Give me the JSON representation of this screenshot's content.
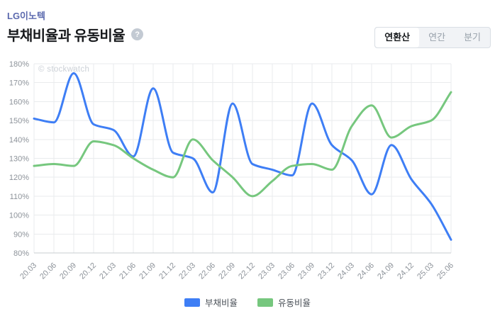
{
  "header": {
    "company": "LG이노텍",
    "title": "부채비율과 유동비율",
    "help_icon": "?",
    "period_tabs": [
      {
        "label": "연환산",
        "selected": true
      },
      {
        "label": "연간",
        "selected": false
      },
      {
        "label": "분기",
        "selected": false
      }
    ]
  },
  "watermark": "© stockwatch",
  "colors": {
    "company_link": "#5b69ae",
    "debt_ratio_line": "#3e7ef5",
    "current_ratio_line": "#76c77e",
    "grid": "#e9ebed",
    "axis_baseline": "#c9cdd2",
    "tick_text": "#8d939a"
  },
  "chart_data": {
    "type": "line",
    "title": "부채비율과 유동비율",
    "smooth": true,
    "grid": true,
    "legend_position": "bottom",
    "x_tick_rotation": -45,
    "ylim": [
      80,
      180
    ],
    "y_tick_step": 10,
    "y_ticks": [
      "80%",
      "90%",
      "100%",
      "110%",
      "120%",
      "130%",
      "140%",
      "150%",
      "160%",
      "170%",
      "180%"
    ],
    "categories": [
      "20.03",
      "20.06",
      "20.09",
      "20.12",
      "21.03",
      "21.06",
      "21.09",
      "21.12",
      "22.03",
      "22.06",
      "22.09",
      "22.12",
      "23.03",
      "23.06",
      "23.09",
      "23.12",
      "24.03",
      "24.06",
      "24.09",
      "24.12",
      "25.03",
      "25.06"
    ],
    "series": [
      {
        "name": "부채비율",
        "color": "#3e7ef5",
        "values": [
          151,
          149,
          175,
          148,
          145,
          131,
          167,
          133,
          130,
          112,
          159,
          127,
          124,
          121,
          159,
          137,
          129,
          111,
          137,
          119,
          106,
          87
        ]
      },
      {
        "name": "유동비율",
        "color": "#76c77e",
        "values": [
          126,
          127,
          126,
          139,
          137,
          130,
          124,
          120,
          140,
          129,
          120,
          110,
          118,
          126,
          127,
          124,
          147,
          158,
          141,
          147,
          150,
          165
        ]
      }
    ]
  }
}
